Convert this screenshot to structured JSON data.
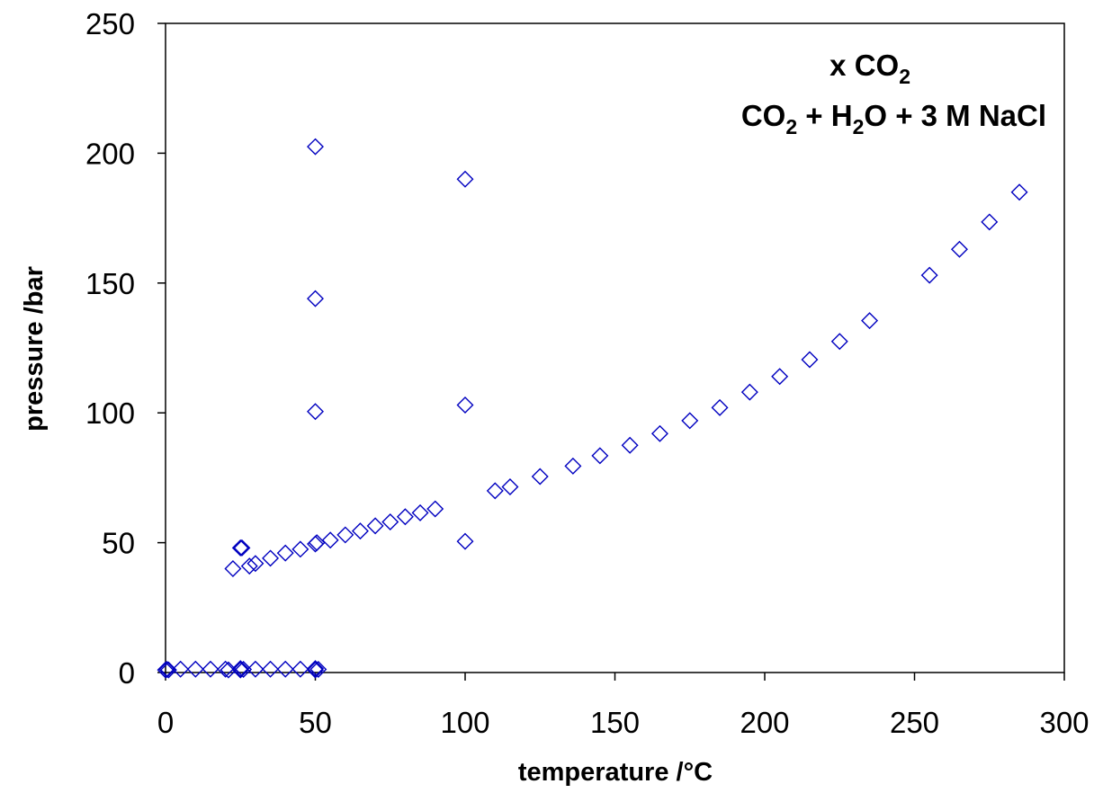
{
  "chart_data": {
    "type": "scatter",
    "xlabel": "temperature /°C",
    "ylabel": "pressure /bar",
    "xlim": [
      0,
      300
    ],
    "ylim": [
      0,
      250
    ],
    "xticks": [
      "0",
      "50",
      "100",
      "150",
      "200",
      "250",
      "300"
    ],
    "yticks": [
      "0",
      "50",
      "100",
      "150",
      "200",
      "250"
    ],
    "grid": false,
    "marker": "open-diamond",
    "marker_color": "#0000c0",
    "annotation": {
      "line1": {
        "prefix": "x CO",
        "sub": "2"
      },
      "line2": [
        {
          "text": "CO",
          "sub": "2"
        },
        {
          "text": " + H",
          "sub": "2"
        },
        {
          "text": "O + 3 M NaCl",
          "sub": ""
        }
      ]
    },
    "points": [
      [
        0,
        1
      ],
      [
        0.5,
        1.2
      ],
      [
        1,
        1
      ],
      [
        5,
        1.3
      ],
      [
        10,
        1.3
      ],
      [
        15,
        1.3
      ],
      [
        20,
        1.3
      ],
      [
        21,
        1
      ],
      [
        25,
        1
      ],
      [
        25,
        1.5
      ],
      [
        26,
        1.2
      ],
      [
        30,
        1.3
      ],
      [
        35,
        1.3
      ],
      [
        40,
        1.3
      ],
      [
        45,
        1.3
      ],
      [
        50,
        1
      ],
      [
        50,
        1.5
      ],
      [
        51,
        1.2
      ],
      [
        22.5,
        40
      ],
      [
        25,
        48
      ],
      [
        25.5,
        48
      ],
      [
        28,
        41
      ],
      [
        30,
        42
      ],
      [
        35,
        44
      ],
      [
        40,
        46
      ],
      [
        45,
        47.5
      ],
      [
        50,
        49.5
      ],
      [
        50.5,
        50
      ],
      [
        55,
        51
      ],
      [
        60,
        53
      ],
      [
        65,
        54.5
      ],
      [
        70,
        56.5
      ],
      [
        75,
        58
      ],
      [
        80,
        60
      ],
      [
        85,
        61.5
      ],
      [
        90,
        63
      ],
      [
        50,
        100.5
      ],
      [
        50,
        144
      ],
      [
        50,
        202.5
      ],
      [
        100,
        50.5
      ],
      [
        100,
        103
      ],
      [
        100,
        190
      ],
      [
        110,
        70
      ],
      [
        115,
        71.5
      ],
      [
        125,
        75.5
      ],
      [
        136,
        79.5
      ],
      [
        145,
        83.5
      ],
      [
        155,
        87.5
      ],
      [
        165,
        92
      ],
      [
        175,
        97
      ],
      [
        185,
        102
      ],
      [
        195,
        108
      ],
      [
        205,
        114
      ],
      [
        215,
        120.5
      ],
      [
        225,
        127.5
      ],
      [
        235,
        135.5
      ],
      [
        255,
        153
      ],
      [
        265,
        163
      ],
      [
        275,
        173.5
      ],
      [
        285,
        185
      ]
    ]
  }
}
